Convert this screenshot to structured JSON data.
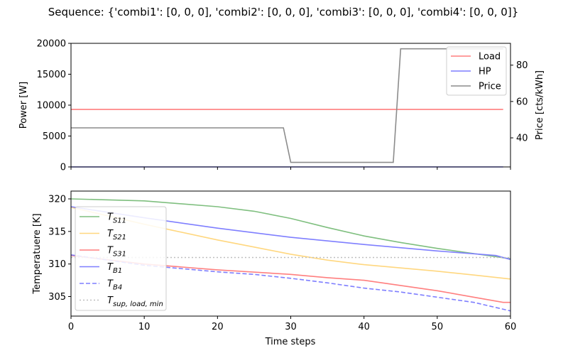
{
  "title": "Sequence: {'combi1': [0, 0, 0], 'combi2': [0, 0, 0], 'combi3': [0, 0, 0], 'combi4': [0, 0, 0]}",
  "chart_data": [
    {
      "type": "line",
      "ylabel": "Power [W]",
      "ylabel_right": "Price [cts/kWh]",
      "xlim": [
        0,
        60
      ],
      "ylim": [
        0,
        20000
      ],
      "ylim_right": [
        24,
        92
      ],
      "yticks": [
        "0",
        "5000",
        "10000",
        "15000",
        "20000"
      ],
      "yticks_right": [
        "40",
        "60",
        "80"
      ],
      "legend_position": "top-right",
      "series": [
        {
          "name": "Load",
          "axis": "left",
          "color": "#ff7f7f",
          "dash": "solid",
          "x": [
            0,
            59
          ],
          "y": [
            9300,
            9300
          ]
        },
        {
          "name": "HP",
          "axis": "left",
          "color": "#7f7fff",
          "dash": "solid",
          "x": [
            0,
            59
          ],
          "y": [
            0,
            0
          ]
        },
        {
          "name": "Price",
          "axis": "right",
          "color": "#8c8c8c",
          "dash": "solid",
          "x": [
            0,
            29,
            30,
            44,
            45,
            59
          ],
          "y": [
            45.5,
            45.5,
            26.5,
            26.5,
            89,
            89
          ]
        }
      ]
    },
    {
      "type": "line",
      "xlabel": "Time steps",
      "ylabel": "Temperatuere [K]",
      "xlim": [
        0,
        60
      ],
      "ylim": [
        302,
        321.2
      ],
      "xticks": [
        "0",
        "10",
        "20",
        "30",
        "40",
        "50",
        "60"
      ],
      "yticks": [
        "305",
        "310",
        "315",
        "320"
      ],
      "legend_position": "lower-left",
      "series": [
        {
          "name": "T",
          "sub": "S11",
          "color": "#7fbf7f",
          "dash": "solid",
          "x": [
            0,
            10,
            20,
            25,
            30,
            35,
            40,
            45,
            50,
            55,
            60
          ],
          "y": [
            320,
            319.7,
            318.8,
            318.1,
            317,
            315.6,
            314.3,
            313.3,
            312.4,
            311.6,
            310.8
          ]
        },
        {
          "name": "T",
          "sub": "S21",
          "color": "#ffd77f",
          "dash": "solid",
          "x": [
            0,
            10,
            20,
            25,
            30,
            35,
            40,
            45,
            50,
            55,
            60
          ],
          "y": [
            318.7,
            316.1,
            313.7,
            312.6,
            311.5,
            310.6,
            309.9,
            309.4,
            308.9,
            308.3,
            307.7
          ]
        },
        {
          "name": "T",
          "sub": "S31",
          "color": "#ff7f7f",
          "dash": "solid",
          "x": [
            0,
            10,
            20,
            30,
            35,
            40,
            45,
            50,
            55,
            59,
            60
          ],
          "y": [
            311.3,
            310,
            309.1,
            308.4,
            307.9,
            307.5,
            306.7,
            305.9,
            304.9,
            304.1,
            304.1
          ]
        },
        {
          "name": "T",
          "sub": "B1",
          "color": "#7f7fff",
          "dash": "solid",
          "x": [
            0,
            10,
            20,
            30,
            40,
            50,
            58,
            60
          ],
          "y": [
            318.8,
            317.1,
            315.5,
            314.1,
            313,
            312,
            311.3,
            310.7
          ]
        },
        {
          "name": "T",
          "sub": "B4",
          "color": "#7f7fff",
          "dash": "dashed",
          "x": [
            0,
            10,
            20,
            25,
            30,
            35,
            40,
            45,
            50,
            55,
            60
          ],
          "y": [
            311.4,
            309.8,
            308.8,
            308.4,
            307.8,
            307.1,
            306.3,
            305.7,
            304.9,
            304.1,
            302.8
          ]
        },
        {
          "name": "T",
          "sub": "sup, load, min",
          "color": "#bfbfbf",
          "dash": "dotted",
          "x": [
            0,
            60
          ],
          "y": [
            311,
            311
          ]
        }
      ]
    }
  ]
}
